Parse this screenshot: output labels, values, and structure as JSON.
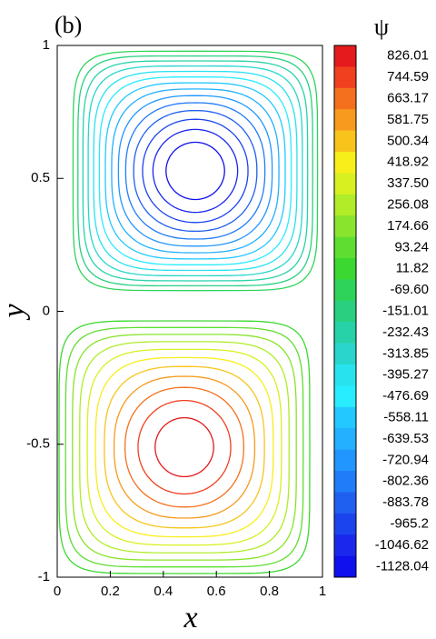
{
  "chart_data": {
    "type": "contour",
    "panel_label": "(b)",
    "x_label": "x",
    "y_label": "y",
    "colorbar_title": "ψ",
    "xlim": [
      0,
      1
    ],
    "ylim": [
      -1,
      1
    ],
    "xticks": [
      0,
      0.2,
      0.4,
      0.6,
      0.8,
      1
    ],
    "yticks": [
      -1,
      -0.5,
      0,
      0.5,
      1
    ],
    "levels": [
      826.01,
      744.59,
      663.17,
      581.75,
      500.34,
      418.92,
      {
        "value": 337.5,
        "label": "337.50"
      },
      256.08,
      174.66,
      93.24,
      11.82,
      {
        "value": -69.6,
        "label": "-69.60"
      },
      -151.01,
      -232.43,
      -313.85,
      -395.27,
      -476.69,
      -558.11,
      -639.53,
      -720.94,
      -802.36,
      -883.78,
      -965.2,
      -1046.62,
      -1128.04
    ],
    "colors": [
      "#e41a1c",
      "#f04020",
      "#f5701e",
      "#f79a1d",
      "#f8c41c",
      "#f8ee1a",
      "#d8f020",
      "#b0ec28",
      "#88e42c",
      "#5ede30",
      "#3cd832",
      "#2ed45a",
      "#28d080",
      "#28d2a8",
      "#28d6cc",
      "#28e2ee",
      "#28ecff",
      "#22c8ff",
      "#22b0ff",
      "#2296ff",
      "#207cf8",
      "#2060f0",
      "#1c44ee",
      "#1a28ee",
      "#1010ee"
    ]
  }
}
